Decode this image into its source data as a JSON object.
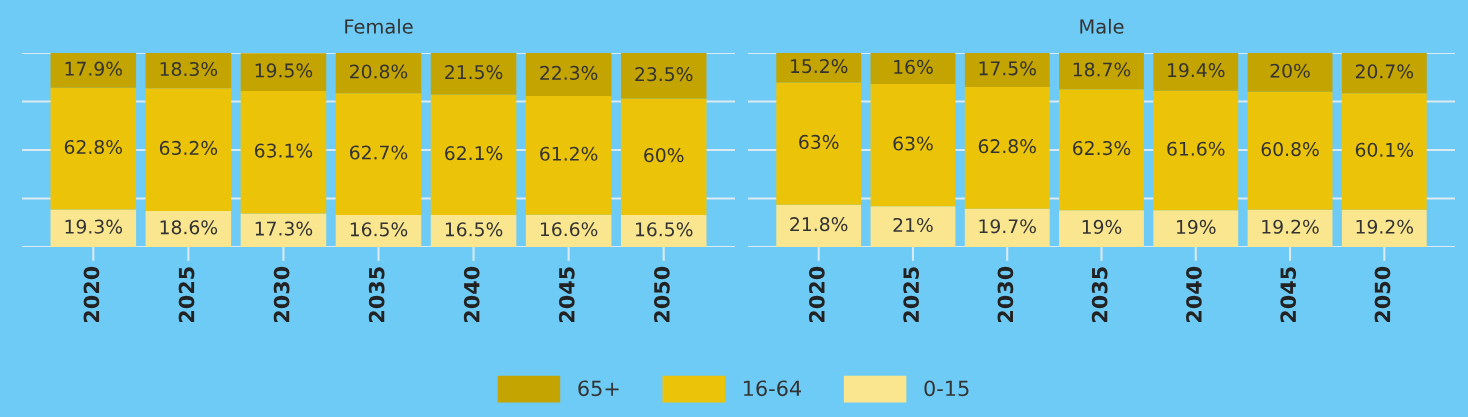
{
  "chart_data": [
    {
      "type": "bar",
      "title": "Female",
      "stacked": true,
      "categories": [
        "2020",
        "2025",
        "2030",
        "2035",
        "2040",
        "2045",
        "2050"
      ],
      "ylim": [
        0,
        100
      ],
      "yticks": [
        {
          "value": 0,
          "label": null
        },
        {
          "value": 25,
          "label": null
        },
        {
          "value": 50,
          "label": null
        },
        {
          "value": 75,
          "label": null
        },
        {
          "value": 100,
          "label": null
        }
      ],
      "tick_labels": "x",
      "grid": "y",
      "legend": "bottom",
      "series": [
        {
          "name": "0-15",
          "color": "#f9e68f",
          "values": [
            19.3,
            18.6,
            17.3,
            16.5,
            16.5,
            16.6,
            16.5
          ],
          "value_labels": [
            "19.3%",
            "18.6%",
            "17.3%",
            "16.5%",
            "16.5%",
            "16.6%",
            "16.5%"
          ]
        },
        {
          "name": "16-64",
          "color": "#ebc40a",
          "values": [
            62.8,
            63.2,
            63.1,
            62.7,
            62.1,
            61.2,
            60
          ],
          "value_labels": [
            "62.8%",
            "63.2%",
            "63.1%",
            "62.7%",
            "62.1%",
            "61.2%",
            "60%"
          ]
        },
        {
          "name": "65+",
          "color": "#c4a400",
          "values": [
            17.9,
            18.3,
            19.5,
            20.8,
            21.5,
            22.3,
            23.5
          ],
          "value_labels": [
            "17.9%",
            "18.3%",
            "19.5%",
            "20.8%",
            "21.5%",
            "22.3%",
            "23.5%"
          ]
        }
      ]
    },
    {
      "type": "bar",
      "title": "Male",
      "stacked": true,
      "categories": [
        "2020",
        "2025",
        "2030",
        "2035",
        "2040",
        "2045",
        "2050"
      ],
      "ylim": [
        0,
        100
      ],
      "yticks": [
        {
          "value": 0,
          "label": null
        },
        {
          "value": 25,
          "label": null
        },
        {
          "value": 50,
          "label": null
        },
        {
          "value": 75,
          "label": null
        },
        {
          "value": 100,
          "label": null
        }
      ],
      "tick_labels": "x",
      "grid": "y",
      "legend": "bottom",
      "series": [
        {
          "name": "0-15",
          "color": "#f9e68f",
          "values": [
            21.8,
            21,
            19.7,
            19,
            19,
            19.2,
            19.2
          ],
          "value_labels": [
            "21.8%",
            "21%",
            "19.7%",
            "19%",
            "19%",
            "19.2%",
            "19.2%"
          ]
        },
        {
          "name": "16-64",
          "color": "#ebc40a",
          "values": [
            63,
            63,
            62.8,
            62.3,
            61.6,
            60.8,
            60.1
          ],
          "value_labels": [
            "63%",
            "63%",
            "62.8%",
            "62.3%",
            "61.6%",
            "60.8%",
            "60.1%"
          ]
        },
        {
          "name": "65+",
          "color": "#c4a400",
          "values": [
            15.2,
            16,
            17.5,
            18.7,
            19.4,
            20,
            20.7
          ],
          "value_labels": [
            "15.2%",
            "16%",
            "17.5%",
            "18.7%",
            "19.4%",
            "20%",
            "20.7%"
          ]
        }
      ]
    }
  ]
}
